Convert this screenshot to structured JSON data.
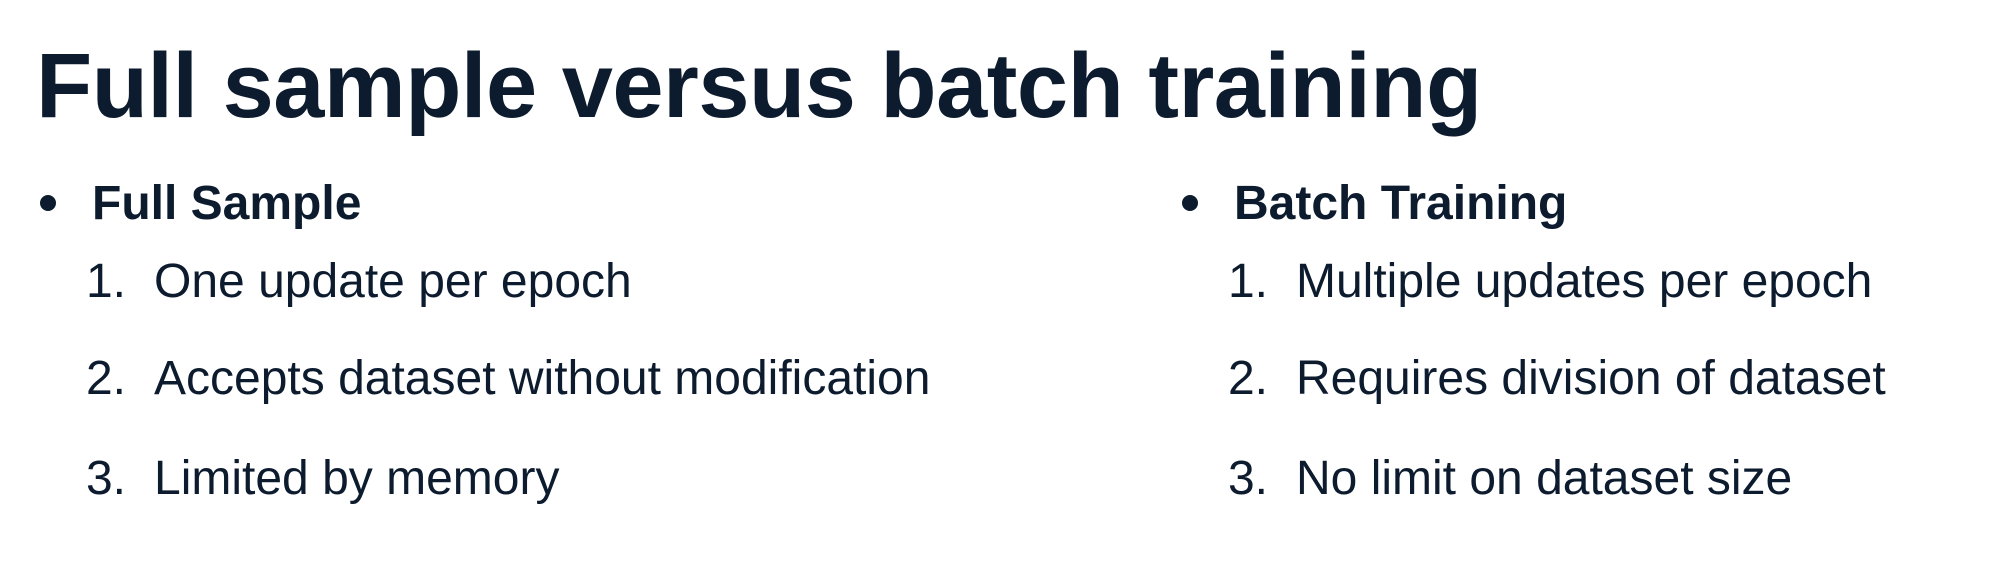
{
  "slide": {
    "title": "Full sample versus batch training",
    "columns": [
      {
        "heading": "Full Sample",
        "items": [
          {
            "marker": "1.",
            "text": "One update per epoch"
          },
          {
            "marker": "2.",
            "text": "Accepts dataset without modification"
          },
          {
            "marker": "3.",
            "text": "Limited by memory"
          }
        ]
      },
      {
        "heading": "Batch Training",
        "items": [
          {
            "marker": "1.",
            "text": "Multiple updates per epoch"
          },
          {
            "marker": "2.",
            "text": "Requires division of dataset"
          },
          {
            "marker": "3.",
            "text": "No limit on dataset size"
          }
        ]
      }
    ],
    "colors": {
      "text": "#0d1b2e",
      "background": "#ffffff"
    }
  }
}
